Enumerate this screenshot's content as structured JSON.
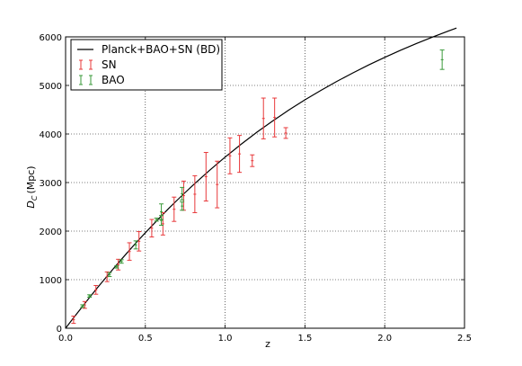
{
  "chart_data": {
    "type": "scatter",
    "xlabel": "z",
    "ylabel_symbol": "D",
    "ylabel_subscript": "C",
    "ylabel_unit": "(Mpc)",
    "xlim": [
      0,
      2.5
    ],
    "ylim": [
      0,
      6000
    ],
    "xticks": [
      {
        "value": 0,
        "label": "0.0"
      },
      {
        "value": 0.5,
        "label": "0.5"
      },
      {
        "value": 1.0,
        "label": "1.0"
      },
      {
        "value": 1.5,
        "label": "1.5"
      },
      {
        "value": 2.0,
        "label": "2.0"
      },
      {
        "value": 2.5,
        "label": "2.5"
      }
    ],
    "yticks": [
      {
        "value": 0,
        "label": "0"
      },
      {
        "value": 1000,
        "label": "1000"
      },
      {
        "value": 2000,
        "label": "2000"
      },
      {
        "value": 3000,
        "label": "3000"
      },
      {
        "value": 4000,
        "label": "4000"
      },
      {
        "value": 5000,
        "label": "5000"
      },
      {
        "value": 6000,
        "label": "6000"
      }
    ],
    "grid": true,
    "legend_position": "top-left",
    "legend": [
      {
        "label": "Planck+BAO+SN (BD)",
        "kind": "line",
        "color": "#000000"
      },
      {
        "label": "SN",
        "kind": "errorbar",
        "color": "#e8383a"
      },
      {
        "label": "BAO",
        "kind": "errorbar",
        "color": "#3a9a3a"
      }
    ],
    "model_curve": {
      "name": "Planck+BAO+SN (BD)",
      "color": "#000000",
      "x": [
        0.0,
        0.05,
        0.1,
        0.15,
        0.2,
        0.25,
        0.3,
        0.35,
        0.4,
        0.45,
        0.5,
        0.55,
        0.6,
        0.65,
        0.7,
        0.75,
        0.8,
        0.85,
        0.9,
        0.95,
        1.0,
        1.1,
        1.2,
        1.3,
        1.4,
        1.5,
        1.6,
        1.7,
        1.8,
        1.9,
        2.0,
        2.1,
        2.2,
        2.3,
        2.4,
        2.45
      ],
      "y": [
        0,
        215,
        425,
        632,
        835,
        1034,
        1229,
        1420,
        1606,
        1789,
        1967,
        2141,
        2311,
        2477,
        2638,
        2796,
        2950,
        3099,
        3245,
        3386,
        3524,
        3788,
        4038,
        4273,
        4494,
        4703,
        4899,
        5084,
        5258,
        5423,
        5578,
        5725,
        5864,
        5997,
        6122,
        6182
      ]
    },
    "series": [
      {
        "name": "SN",
        "color": "#e8383a",
        "points": [
          {
            "x": 0.05,
            "y": 175,
            "err": 75
          },
          {
            "x": 0.12,
            "y": 480,
            "err": 70
          },
          {
            "x": 0.19,
            "y": 790,
            "err": 90
          },
          {
            "x": 0.26,
            "y": 1060,
            "err": 100
          },
          {
            "x": 0.33,
            "y": 1310,
            "err": 110
          },
          {
            "x": 0.4,
            "y": 1580,
            "err": 180
          },
          {
            "x": 0.46,
            "y": 1790,
            "err": 200
          },
          {
            "x": 0.54,
            "y": 2060,
            "err": 180
          },
          {
            "x": 0.61,
            "y": 2150,
            "err": 230
          },
          {
            "x": 0.68,
            "y": 2450,
            "err": 250
          },
          {
            "x": 0.74,
            "y": 2730,
            "err": 300
          },
          {
            "x": 0.81,
            "y": 2760,
            "err": 380
          },
          {
            "x": 0.88,
            "y": 3120,
            "err": 500
          },
          {
            "x": 0.95,
            "y": 2960,
            "err": 480
          },
          {
            "x": 1.03,
            "y": 3550,
            "err": 370
          },
          {
            "x": 1.09,
            "y": 3590,
            "err": 380
          },
          {
            "x": 1.17,
            "y": 3450,
            "err": 120
          },
          {
            "x": 1.24,
            "y": 4320,
            "err": 420
          },
          {
            "x": 1.31,
            "y": 4340,
            "err": 400
          },
          {
            "x": 1.38,
            "y": 4020,
            "err": 110
          }
        ]
      },
      {
        "name": "BAO",
        "color": "#3a9a3a",
        "points": [
          {
            "x": 0.106,
            "y": 456,
            "err": 27
          },
          {
            "x": 0.15,
            "y": 664,
            "err": 25
          },
          {
            "x": 0.275,
            "y": 1104,
            "err": 40
          },
          {
            "x": 0.32,
            "y": 1264,
            "err": 25
          },
          {
            "x": 0.35,
            "y": 1375,
            "err": 36
          },
          {
            "x": 0.44,
            "y": 1716,
            "err": 83
          },
          {
            "x": 0.57,
            "y": 2236,
            "err": 31
          },
          {
            "x": 0.6,
            "y": 2221,
            "err": 101
          },
          {
            "x": 0.6,
            "y": 2400,
            "err": 160
          },
          {
            "x": 0.73,
            "y": 2516,
            "err": 86
          },
          {
            "x": 0.73,
            "y": 2770,
            "err": 130
          },
          {
            "x": 2.36,
            "y": 5530,
            "err": 200
          }
        ]
      }
    ]
  }
}
